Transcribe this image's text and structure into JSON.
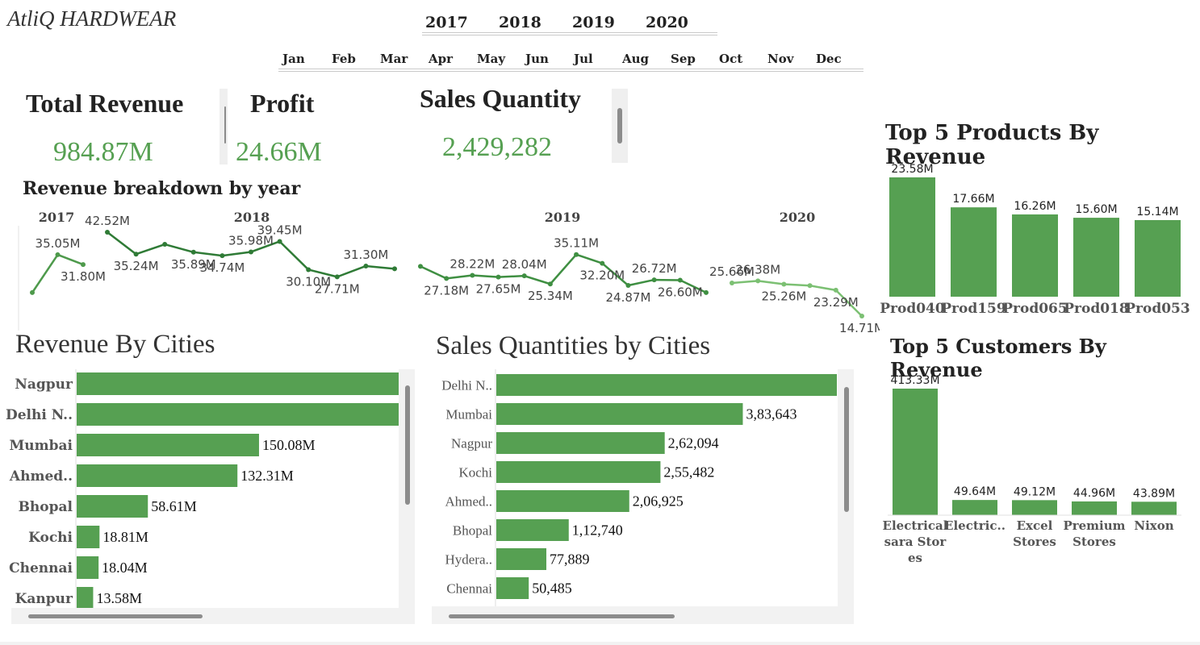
{
  "brand": "AtliQ HARDWEAR",
  "filters": {
    "years": [
      "2017",
      "2018",
      "2019",
      "2020"
    ],
    "months": [
      "Jan",
      "Feb",
      "Mar",
      "Apr",
      "May",
      "Jun",
      "Jul",
      "Aug",
      "Sep",
      "Oct",
      "Nov",
      "Dec"
    ]
  },
  "kpis": {
    "revenue": {
      "label": "Total Revenue",
      "value": "984.87M"
    },
    "profit": {
      "label": "Profit",
      "value": "24.66M"
    },
    "quantity": {
      "label": "Sales Quantity",
      "value": "2,429,282"
    }
  },
  "colors": {
    "accent": "#56a052",
    "line_2017": "#4e9a4c",
    "line_2018": "#2f7b36",
    "line_2019": "#3f8f42",
    "line_2020": "#7cc073"
  },
  "chart_data": [
    {
      "type": "line",
      "title": "Revenue breakdown by year",
      "series": [
        {
          "name": "2017",
          "values": [
            22.5,
            35.05,
            31.8
          ],
          "labels": [
            "",
            "35.05M",
            "31.80M"
          ]
        },
        {
          "name": "2018",
          "values": [
            42.52,
            35.24,
            38.5,
            35.89,
            34.74,
            35.98,
            39.45,
            30.1,
            27.71,
            31.3,
            30.4
          ],
          "labels": [
            "42.52M",
            "35.24M",
            "",
            "35.89M",
            "34.74M",
            "35.98M",
            "39.45M",
            "30.10M",
            "27.71M",
            "31.30M",
            ""
          ]
        },
        {
          "name": "2019",
          "values": [
            31.2,
            27.18,
            28.22,
            27.65,
            28.04,
            25.34,
            35.11,
            32.2,
            24.87,
            26.72,
            26.6,
            22.5
          ],
          "labels": [
            "",
            "27.18M",
            "28.22M",
            "27.65M",
            "28.04M",
            "25.34M",
            "35.11M",
            "32.20M",
            "24.87M",
            "26.72M",
            "26.60M",
            ""
          ]
        },
        {
          "name": "2020",
          "values": [
            25.66,
            26.38,
            25.26,
            24.8,
            23.29,
            14.71
          ],
          "labels": [
            "25.66M",
            "26.38M",
            "25.26M",
            "",
            "23.29M",
            "14.71M"
          ]
        }
      ]
    },
    {
      "type": "bar",
      "title": "Top 5 Products By Revenue",
      "categories": [
        "Prod040",
        "Prod159",
        "Prod065",
        "Prod018",
        "Prod053"
      ],
      "values": [
        23.58,
        17.66,
        16.26,
        15.6,
        15.14
      ],
      "labels": [
        "23.58M",
        "17.66M",
        "16.26M",
        "15.60M",
        "15.14M"
      ]
    },
    {
      "type": "bar",
      "title": "Top 5 Customers By Revenue",
      "categories": [
        [
          "Electrical",
          "sara Stor",
          "es"
        ],
        [
          "Electric.."
        ],
        [
          "Excel",
          "Stores"
        ],
        [
          "Premium",
          "Stores"
        ],
        [
          "Nixon"
        ]
      ],
      "values": [
        413.33,
        49.64,
        49.12,
        44.96,
        43.89
      ],
      "labels": [
        "413.33M",
        "49.64M",
        "49.12M",
        "44.96M",
        "43.89M"
      ]
    },
    {
      "type": "bar",
      "orientation": "horizontal",
      "title": "Revenue By Cities",
      "categories": [
        "Nagpur",
        "Delhi N..",
        "Mumbai",
        "Ahmed..",
        "Bhopal",
        "Kochi",
        "Chennai",
        "Kanpur"
      ],
      "values": [
        265,
        265,
        150.08,
        132.31,
        58.61,
        18.81,
        18.04,
        13.58
      ],
      "labels": [
        "",
        "",
        "150.08M",
        "132.31M",
        "58.61M",
        "18.81M",
        "18.04M",
        "13.58M"
      ],
      "xlim": [
        0,
        265
      ]
    },
    {
      "type": "bar",
      "orientation": "horizontal",
      "title": "Sales Quantities by Cities",
      "categories": [
        "Delhi N..",
        "Mumbai",
        "Nagpur",
        "Kochi",
        "Ahmed..",
        "Bhopal",
        "Hydera..",
        "Chennai"
      ],
      "values": [
        530000,
        383643,
        262094,
        255482,
        206925,
        112740,
        77889,
        50485
      ],
      "labels": [
        "",
        "3,83,643",
        "2,62,094",
        "2,55,482",
        "2,06,925",
        "1,12,740",
        "77,889",
        "50,485"
      ],
      "xlim": [
        0,
        530000
      ]
    }
  ]
}
